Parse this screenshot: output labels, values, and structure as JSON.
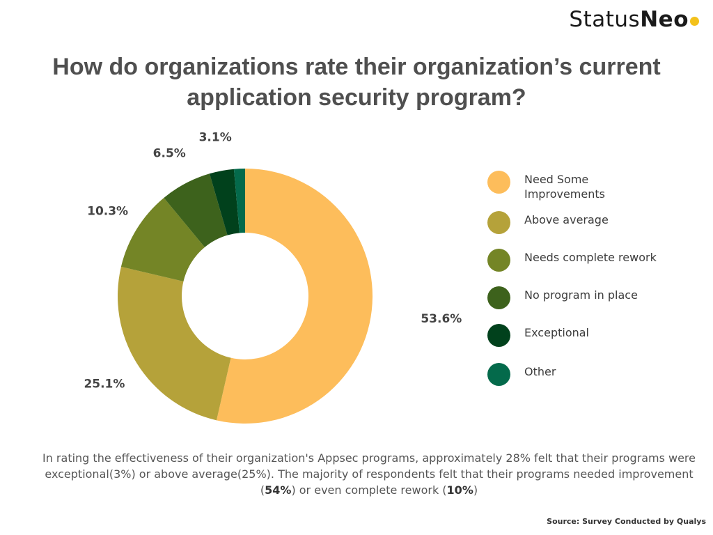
{
  "brand": {
    "name_light": "Status",
    "name_bold": "Neo",
    "dot_color": "#f3c11b"
  },
  "title": "How do organizations rate their organization’s current application security program?",
  "chart_data": {
    "type": "pie",
    "variant": "donut",
    "title": "How do organizations rate their organization’s current application security program?",
    "categories": [
      "Need Some Improvements",
      "Above average",
      "Needs complete rework",
      "No program in place",
      "Exceptional",
      "Other"
    ],
    "values": [
      53.6,
      25.1,
      10.3,
      6.5,
      3.1,
      1.4
    ],
    "labels": [
      "53.6%",
      "25.1%",
      "10.3%",
      "6.5%",
      "3.1%",
      ""
    ],
    "colors": [
      "#fdbd5b",
      "#b5a23a",
      "#748526",
      "#3d621c",
      "#01411c",
      "#046a4b"
    ],
    "legend_position": "right"
  },
  "caption": {
    "part1": "In rating the effectiveness of their organization's Appsec programs, approximately 28% felt that their programs were exceptional(3%) or above average(25%). The majority of respondents felt that their programs needed improvement (",
    "bold1": "54%",
    "part2": ") or even complete rework (",
    "bold2": "10%",
    "part3": ")"
  },
  "source": "Source: Survey Conducted by Qualys"
}
